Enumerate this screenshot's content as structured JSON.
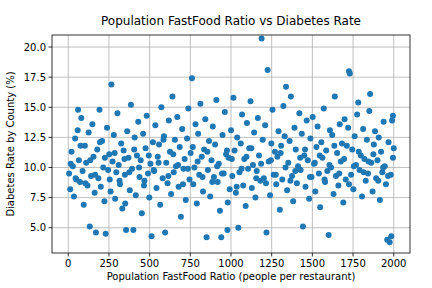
{
  "chart_data": {
    "type": "scatter",
    "title": "Population FastFood Ratio vs Diabetes Rate",
    "x_label": "Population FastFood Ratio (people per restaurant)",
    "y_label": "Diabetes Rate by County (%)",
    "color": "#1f77b4",
    "marker": "circle",
    "grid": true,
    "xlim": [
      -100,
      2100
    ],
    "ylim": [
      2.9,
      21.0
    ],
    "xticks": [
      0,
      250,
      500,
      750,
      1000,
      1250,
      1500,
      1750,
      2000
    ],
    "yticks": [
      {
        "value": 5,
        "label": "5.0"
      },
      {
        "value": 7.5,
        "label": "7.5"
      },
      {
        "value": 10,
        "label": "10.0"
      },
      {
        "value": 12.5,
        "label": "12.5"
      },
      {
        "value": 15,
        "label": "15.0"
      },
      {
        "value": 17.5,
        "label": "17.5"
      },
      {
        "value": 20,
        "label": "20.0"
      }
    ],
    "x": [
      5,
      12,
      20,
      28,
      35,
      42,
      50,
      58,
      65,
      72,
      80,
      88,
      95,
      102,
      110,
      118,
      125,
      132,
      140,
      148,
      155,
      162,
      170,
      178,
      185,
      192,
      200,
      208,
      215,
      222,
      230,
      238,
      245,
      252,
      260,
      265,
      272,
      280,
      288,
      295,
      302,
      310,
      318,
      325,
      332,
      340,
      348,
      355,
      362,
      370,
      378,
      385,
      392,
      400,
      408,
      415,
      422,
      430,
      438,
      445,
      452,
      460,
      468,
      475,
      482,
      490,
      498,
      505,
      512,
      520,
      528,
      535,
      542,
      550,
      558,
      565,
      572,
      580,
      588,
      595,
      602,
      610,
      618,
      625,
      632,
      640,
      648,
      655,
      662,
      670,
      678,
      685,
      692,
      700,
      708,
      715,
      722,
      730,
      738,
      745,
      752,
      760,
      768,
      775,
      782,
      790,
      798,
      805,
      812,
      820,
      828,
      835,
      842,
      850,
      858,
      865,
      872,
      880,
      888,
      895,
      902,
      910,
      918,
      925,
      932,
      940,
      948,
      955,
      962,
      970,
      978,
      985,
      992,
      1000,
      1008,
      1015,
      1022,
      1030,
      1038,
      1045,
      1052,
      1060,
      1068,
      1075,
      1082,
      1090,
      1098,
      1105,
      1112,
      1120,
      1128,
      1135,
      1142,
      1150,
      1158,
      1165,
      1172,
      1180,
      1188,
      1195,
      1202,
      1210,
      1218,
      1225,
      1232,
      1240,
      1248,
      1255,
      1262,
      1270,
      1278,
      1285,
      1292,
      1300,
      1308,
      1315,
      1322,
      1330,
      1338,
      1345,
      1352,
      1360,
      1368,
      1375,
      1382,
      1390,
      1398,
      1405,
      1412,
      1420,
      1428,
      1435,
      1442,
      1450,
      1458,
      1465,
      1472,
      1480,
      1488,
      1495,
      1502,
      1510,
      1518,
      1525,
      1532,
      1540,
      1548,
      1555,
      1562,
      1570,
      1578,
      1585,
      1592,
      1600,
      1608,
      1615,
      1622,
      1630,
      1638,
      1645,
      1652,
      1660,
      1668,
      1675,
      1682,
      1690,
      1698,
      1705,
      1712,
      1720,
      1725,
      1730,
      1738,
      1745,
      1752,
      1760,
      1768,
      1775,
      1782,
      1790,
      1798,
      1805,
      1812,
      1820,
      1828,
      1835,
      1842,
      1850,
      1855,
      1862,
      1870,
      1878,
      1885,
      1892,
      1900,
      1908,
      1915,
      1922,
      1930,
      1938,
      1945,
      1952,
      1960,
      1968,
      1975,
      1982,
      1985,
      1990,
      1995,
      2000,
      15,
      45,
      75,
      105,
      135,
      165,
      195,
      225,
      255,
      285,
      315,
      345,
      375,
      405,
      435,
      465,
      495,
      525,
      555,
      585,
      615,
      645,
      675,
      705,
      735,
      765,
      795,
      825,
      855,
      885,
      915,
      945,
      975,
      1005,
      1035,
      1065,
      1095,
      1125,
      1155,
      1185,
      1215,
      1245,
      1275,
      1305,
      1335,
      1365,
      1395,
      1425,
      1455,
      1485,
      1515,
      1545,
      1575,
      1605,
      1635,
      1665,
      1695,
      1725,
      1755,
      1785,
      1815,
      1845,
      1875,
      1905,
      1935,
      1965,
      1995,
      60,
      350,
      980
    ],
    "values": [
      9.5,
      8.2,
      11.3,
      10.1,
      7.6,
      12.4,
      9.0,
      13.1,
      10.6,
      8.8,
      14.1,
      9.7,
      6.9,
      11.8,
      10.4,
      8.5,
      12.9,
      5.1,
      9.3,
      13.6,
      10.9,
      7.9,
      4.6,
      11.5,
      9.1,
      14.8,
      8.4,
      12.2,
      10.0,
      7.2,
      4.5,
      13.3,
      9.8,
      11.1,
      8.0,
      16.9,
      10.5,
      12.7,
      7.4,
      9.6,
      14.5,
      10.2,
      8.6,
      12.0,
      6.6,
      11.4,
      9.4,
      4.8,
      13.0,
      10.8,
      8.1,
      15.2,
      9.9,
      4.8,
      12.5,
      7.7,
      11.0,
      13.8,
      9.2,
      10.6,
      6.2,
      12.8,
      8.9,
      11.6,
      14.3,
      9.5,
      7.5,
      10.3,
      4.3,
      12.1,
      9.7,
      13.5,
      8.3,
      10.9,
      11.9,
      6.9,
      15.0,
      9.1,
      12.6,
      4.6,
      10.4,
      8.7,
      13.9,
      11.3,
      7.8,
      15.9,
      9.6,
      12.3,
      10.1,
      14.2,
      8.4,
      11.7,
      5.9,
      13.2,
      9.9,
      10.7,
      7.3,
      12.4,
      14.9,
      9.0,
      11.2,
      17.4,
      8.6,
      10.0,
      13.6,
      7.0,
      12.8,
      9.4,
      15.3,
      10.9,
      8.0,
      11.5,
      14.0,
      4.2,
      9.8,
      12.2,
      7.6,
      10.6,
      13.4,
      9.2,
      11.9,
      15.6,
      8.8,
      10.3,
      6.4,
      4.2,
      12.7,
      9.5,
      14.6,
      11.1,
      4.8,
      10.8,
      8.2,
      13.1,
      9.3,
      15.8,
      11.4,
      7.9,
      12.5,
      5.0,
      9.6,
      12.0,
      14.4,
      8.5,
      10.7,
      6.8,
      13.7,
      9.9,
      11.6,
      15.5,
      8.3,
      10.2,
      12.9,
      7.5,
      9.7,
      14.1,
      11.0,
      8.9,
      20.7,
      12.3,
      9.1,
      13.5,
      4.6,
      18.1,
      10.5,
      7.7,
      12.0,
      14.8,
      9.4,
      11.3,
      8.6,
      10.9,
      13.0,
      6.5,
      11.8,
      9.0,
      15.1,
      12.6,
      16.7,
      8.1,
      10.4,
      12.2,
      15.9,
      9.3,
      7.2,
      13.3,
      11.5,
      8.7,
      10.1,
      14.5,
      9.8,
      12.8,
      5.1,
      11.0,
      8.4,
      13.9,
      10.6,
      7.4,
      12.4,
      9.2,
      14.2,
      10.3,
      8.0,
      11.7,
      13.4,
      9.5,
      6.7,
      12.1,
      10.8,
      14.9,
      8.8,
      11.4,
      9.7,
      4.4,
      13.1,
      10.0,
      12.7,
      7.8,
      15.9,
      9.3,
      11.2,
      8.5,
      13.6,
      10.5,
      12.0,
      7.1,
      14.0,
      9.0,
      11.8,
      13.3,
      18.0,
      17.8,
      9.4,
      11.5,
      8.2,
      12.6,
      10.2,
      14.4,
      15.4,
      9.8,
      11.0,
      7.6,
      13.2,
      10.7,
      8.9,
      12.3,
      9.5,
      14.7,
      16.1,
      10.4,
      8.0,
      11.9,
      13.0,
      9.1,
      10.6,
      12.5,
      7.3,
      11.3,
      9.6,
      13.8,
      10.1,
      8.6,
      4.0,
      12.1,
      3.8,
      9.4,
      4.3,
      13.9,
      14.3,
      11.6,
      10.3,
      9.1,
      11.8,
      8.7,
      10.6,
      9.4,
      12.1,
      10.8,
      9.0,
      11.2,
      8.9,
      10.7,
      9.6,
      11.5,
      10.0,
      8.5,
      11.0,
      9.8,
      10.4,
      12.3,
      9.3,
      11.1,
      10.2,
      8.6,
      9.9,
      11.7,
      10.5,
      9.2,
      11.3,
      8.8,
      10.1,
      9.5,
      11.4,
      10.7,
      8.4,
      9.9,
      10.9,
      11.6,
      9.1,
      10.3,
      8.7,
      10.6,
      9.4,
      11.2,
      10.0,
      8.9,
      9.7,
      10.8,
      11.5,
      9.2,
      10.4,
      11.0,
      9.0,
      10.2,
      11.8,
      9.5,
      10.7,
      8.6,
      10.1,
      11.3,
      9.6,
      10.5,
      11.1,
      8.9,
      10.0,
      9.3,
      10.8,
      14.8,
      7.0,
      7.1
    ]
  }
}
